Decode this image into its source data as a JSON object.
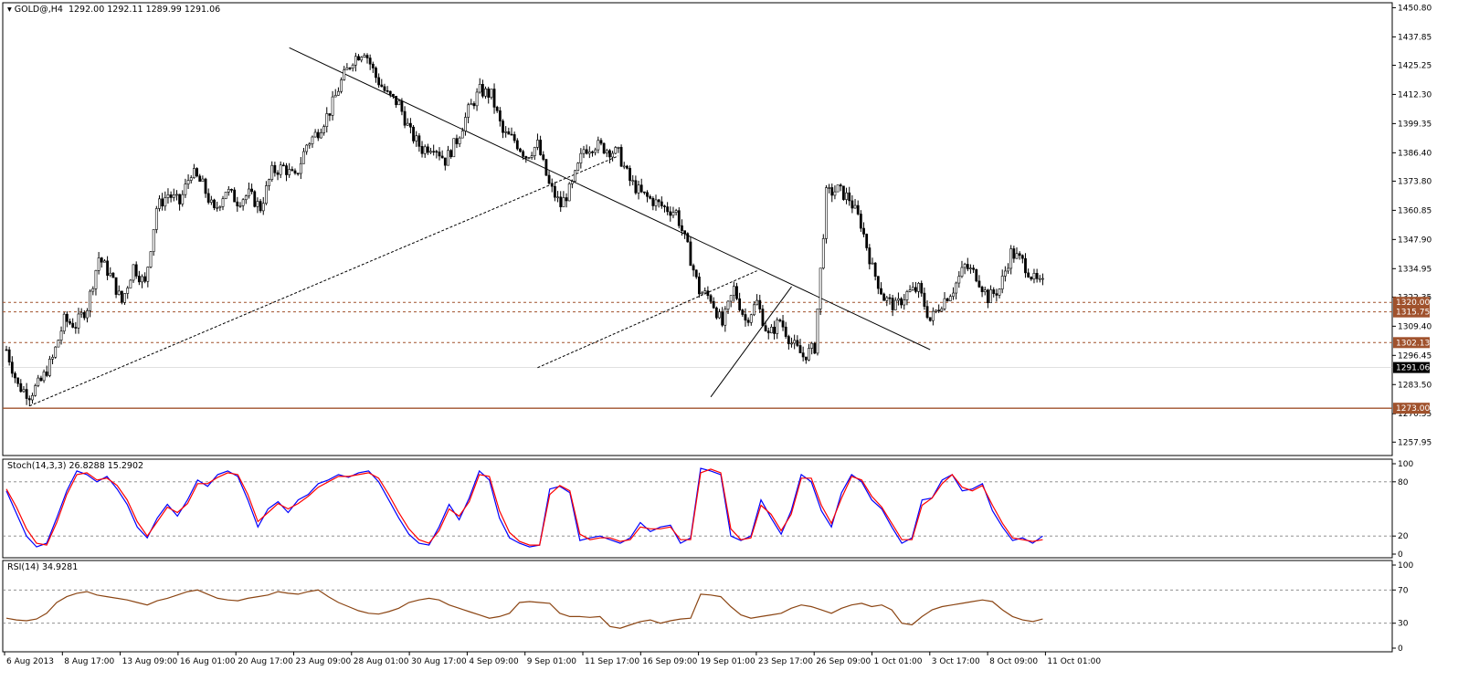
{
  "chart_data": [
    {
      "type": "candlestick",
      "title": "GOLD@,H4",
      "ohlc_text": "1292.00 1292.11 1289.99 1291.06",
      "current_price": 1291.06,
      "y_range": [
        1252,
        1453
      ],
      "y_ticks": [
        "1450.80",
        "1437.85",
        "1425.25",
        "1412.30",
        "1399.35",
        "1386.40",
        "1373.80",
        "1360.85",
        "1347.90",
        "1334.95",
        "1322.35",
        "1309.40",
        "1296.45",
        "1283.50",
        "1270.55",
        "1257.95"
      ],
      "x_labels": [
        "6 Aug 2013",
        "8 Aug 17:00",
        "13 Aug 09:00",
        "16 Aug 01:00",
        "20 Aug 17:00",
        "23 Aug 09:00",
        "28 Aug 01:00",
        "30 Aug 17:00",
        "4 Sep 09:00",
        "9 Sep 01:00",
        "11 Sep 17:00",
        "16 Sep 09:00",
        "19 Sep 01:00",
        "23 Sep 17:00",
        "26 Sep 09:00",
        "1 Oct 01:00",
        "3 Oct 17:00",
        "8 Oct 09:00",
        "11 Oct 01:00"
      ],
      "candle_count": 360,
      "close_path": [
        [
          0,
          1299
        ],
        [
          4,
          1283
        ],
        [
          8,
          1279
        ],
        [
          12,
          1285
        ],
        [
          16,
          1295
        ],
        [
          20,
          1312
        ],
        [
          24,
          1310
        ],
        [
          28,
          1318
        ],
        [
          32,
          1340
        ],
        [
          36,
          1332
        ],
        [
          40,
          1320
        ],
        [
          44,
          1336
        ],
        [
          48,
          1328
        ],
        [
          52,
          1362
        ],
        [
          56,
          1368
        ],
        [
          60,
          1364
        ],
        [
          64,
          1378
        ],
        [
          68,
          1372
        ],
        [
          72,
          1360
        ],
        [
          76,
          1370
        ],
        [
          80,
          1365
        ],
        [
          84,
          1368
        ],
        [
          88,
          1362
        ],
        [
          92,
          1378
        ],
        [
          96,
          1380
        ],
        [
          100,
          1375
        ],
        [
          104,
          1390
        ],
        [
          108,
          1396
        ],
        [
          112,
          1405
        ],
        [
          116,
          1418
        ],
        [
          120,
          1428
        ],
        [
          124,
          1432
        ],
        [
          128,
          1420
        ],
        [
          132,
          1412
        ],
        [
          136,
          1408
        ],
        [
          140,
          1395
        ],
        [
          144,
          1388
        ],
        [
          148,
          1390
        ],
        [
          152,
          1383
        ],
        [
          156,
          1392
        ],
        [
          160,
          1405
        ],
        [
          164,
          1414
        ],
        [
          168,
          1412
        ],
        [
          172,
          1395
        ],
        [
          176,
          1392
        ],
        [
          180,
          1385
        ],
        [
          184,
          1390
        ],
        [
          188,
          1372
        ],
        [
          192,
          1363
        ],
        [
          196,
          1372
        ],
        [
          200,
          1388
        ],
        [
          204,
          1390
        ],
        [
          208,
          1388
        ],
        [
          212,
          1386
        ],
        [
          216,
          1374
        ],
        [
          220,
          1368
        ],
        [
          224,
          1365
        ],
        [
          228,
          1362
        ],
        [
          232,
          1360
        ],
        [
          236,
          1344
        ],
        [
          240,
          1325
        ],
        [
          244,
          1322
        ],
        [
          248,
          1310
        ],
        [
          252,
          1326
        ],
        [
          256,
          1312
        ],
        [
          260,
          1320
        ],
        [
          264,
          1305
        ],
        [
          268,
          1312
        ],
        [
          272,
          1302
        ],
        [
          276,
          1296
        ],
        [
          280,
          1300
        ],
        [
          284,
          1368
        ],
        [
          288,
          1370
        ],
        [
          292,
          1366
        ],
        [
          296,
          1355
        ],
        [
          300,
          1335
        ],
        [
          304,
          1322
        ],
        [
          308,
          1318
        ],
        [
          312,
          1324
        ],
        [
          316,
          1326
        ],
        [
          320,
          1312
        ],
        [
          324,
          1320
        ],
        [
          328,
          1326
        ],
        [
          332,
          1336
        ],
        [
          336,
          1332
        ],
        [
          340,
          1322
        ],
        [
          344,
          1326
        ],
        [
          348,
          1342
        ],
        [
          352,
          1338
        ],
        [
          356,
          1330
        ],
        [
          358,
          1328
        ]
      ],
      "support_resistance": [
        {
          "label": "1320.00",
          "value": 1320.0,
          "style": "dotted"
        },
        {
          "label": "1315.75",
          "value": 1315.75,
          "style": "dotted"
        },
        {
          "label": "1302.13",
          "value": 1302.13,
          "style": "dotted"
        },
        {
          "label": "1273.00",
          "value": 1273.0,
          "style": "solid"
        }
      ],
      "trendlines": [
        {
          "style": "solid",
          "from": [
            98,
            1433
          ],
          "to": [
            320,
            1299
          ]
        },
        {
          "style": "dashed",
          "from": [
            8,
            1274
          ],
          "to": [
            212,
            1385
          ]
        },
        {
          "style": "dashed",
          "from": [
            184,
            1291
          ],
          "to": [
            260,
            1334
          ]
        },
        {
          "style": "solid",
          "from": [
            244,
            1278
          ],
          "to": [
            272,
            1327
          ]
        }
      ]
    },
    {
      "type": "line",
      "title": "Stoch(14,3,3) 26.8288 15.2902",
      "y_range": [
        0,
        100
      ],
      "y_ticks": [
        "100",
        "80",
        "20",
        "0"
      ],
      "levels": [
        80,
        20
      ],
      "series": [
        {
          "color": "#0000ff",
          "values": [
            70,
            45,
            20,
            8,
            12,
            40,
            70,
            92,
            88,
            80,
            86,
            72,
            55,
            30,
            18,
            40,
            55,
            42,
            60,
            82,
            75,
            88,
            92,
            86,
            60,
            30,
            50,
            58,
            46,
            60,
            66,
            78,
            82,
            88,
            85,
            90,
            92,
            80,
            60,
            40,
            22,
            12,
            10,
            30,
            55,
            38,
            62,
            92,
            82,
            40,
            18,
            12,
            8,
            10,
            72,
            75,
            68,
            15,
            18,
            20,
            16,
            12,
            18,
            35,
            25,
            30,
            32,
            12,
            18,
            95,
            92,
            88,
            20,
            15,
            20,
            60,
            40,
            22,
            48,
            88,
            80,
            48,
            30,
            68,
            88,
            80,
            60,
            50,
            30,
            12,
            18,
            60,
            62,
            82,
            88,
            70,
            72,
            78,
            48,
            30,
            15,
            18,
            12,
            20
          ]
        },
        {
          "color": "#ff0000",
          "values": [
            72,
            52,
            28,
            12,
            10,
            35,
            66,
            88,
            90,
            82,
            84,
            76,
            60,
            36,
            20,
            36,
            52,
            46,
            56,
            78,
            78,
            85,
            90,
            88,
            66,
            36,
            46,
            56,
            50,
            56,
            64,
            74,
            80,
            86,
            86,
            88,
            90,
            84,
            66,
            46,
            28,
            16,
            12,
            26,
            50,
            42,
            58,
            88,
            86,
            48,
            24,
            14,
            10,
            10,
            66,
            76,
            70,
            22,
            16,
            18,
            18,
            14,
            16,
            30,
            28,
            28,
            30,
            16,
            16,
            90,
            94,
            90,
            28,
            16,
            18,
            54,
            44,
            26,
            44,
            84,
            84,
            54,
            34,
            62,
            86,
            82,
            64,
            52,
            34,
            16,
            16,
            54,
            62,
            78,
            88,
            74,
            70,
            76,
            54,
            34,
            18,
            16,
            14,
            16
          ]
        }
      ]
    },
    {
      "type": "line",
      "title": "RSI(14) 34.9281",
      "y_range": [
        0,
        100
      ],
      "y_ticks": [
        "100",
        "70",
        "30",
        "0"
      ],
      "levels": [
        70,
        30
      ],
      "series": [
        {
          "color": "#8b4513",
          "values": [
            36,
            34,
            33,
            35,
            42,
            55,
            62,
            66,
            68,
            64,
            62,
            60,
            58,
            55,
            52,
            57,
            60,
            64,
            68,
            70,
            65,
            60,
            58,
            57,
            60,
            62,
            64,
            68,
            66,
            65,
            68,
            70,
            62,
            55,
            50,
            45,
            42,
            41,
            44,
            48,
            55,
            58,
            60,
            58,
            52,
            48,
            44,
            40,
            36,
            38,
            42,
            55,
            56,
            55,
            54,
            42,
            38,
            38,
            37,
            38,
            26,
            24,
            28,
            32,
            34,
            30,
            33,
            35,
            36,
            65,
            64,
            62,
            50,
            40,
            36,
            38,
            40,
            42,
            48,
            52,
            50,
            46,
            42,
            48,
            52,
            54,
            50,
            52,
            46,
            30,
            28,
            38,
            46,
            50,
            52,
            54,
            56,
            58,
            56,
            46,
            38,
            34,
            32,
            35
          ]
        }
      ]
    }
  ]
}
